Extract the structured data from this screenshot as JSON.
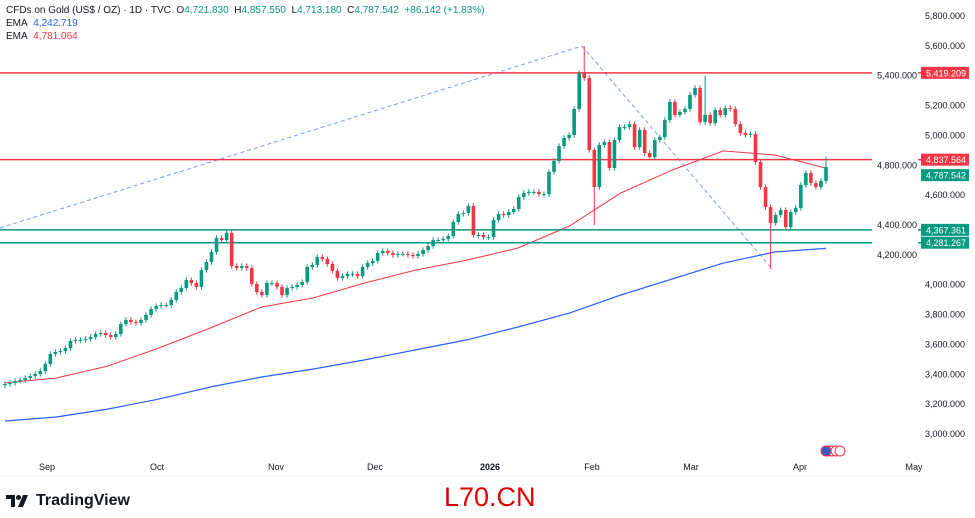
{
  "header": {
    "symbol": "CFDs on Gold (US$ / OZ) · 1D · TVC",
    "open_label": "O",
    "open": "4,721.830",
    "high_label": "H",
    "high": "4,857.550",
    "low_label": "L",
    "low": "4,713.180",
    "close_label": "C",
    "close": "4,787.542",
    "change": "+86.142 (+1.83%)",
    "ema1_label": "EMA",
    "ema1_value": "4,242.719",
    "ema2_label": "EMA",
    "ema2_value": "4,781.064"
  },
  "branding": {
    "logo_text": "TradingView",
    "watermark": "L70.CN"
  },
  "colors": {
    "up": "#089981",
    "down": "#f23645",
    "ema_slow": "#2962ff",
    "ema_fast": "#f23645",
    "support": "#089981",
    "resistance": "#f23645"
  },
  "chart_data": {
    "type": "candlestick",
    "title": "CFDs on Gold (US$ / OZ) · 1D · TVC",
    "x_tick_labels": [
      "Sep",
      "Oct",
      "Nov",
      "Dec",
      "2026",
      "Feb",
      "Mar",
      "Apr",
      "May"
    ],
    "y_tick_labels": [
      "3,000.000",
      "3,200.000",
      "3,400.000",
      "3,600.000",
      "3,800.000",
      "4,000.000",
      "4,200.000",
      "4,400.000",
      "4,600.000",
      "4,800.000",
      "5,000.000",
      "5,200.000",
      "5,400.000",
      "5,600.000",
      "5,800.000"
    ],
    "ylim": [
      2900,
      5900
    ],
    "grid": false,
    "closes": [
      3335,
      3342,
      3355,
      3362,
      3375,
      3388,
      3402,
      3422,
      3469,
      3536,
      3549,
      3556,
      3576,
      3623,
      3630,
      3630,
      3636,
      3650,
      3670,
      3676,
      3663,
      3650,
      3670,
      3737,
      3764,
      3750,
      3743,
      3764,
      3797,
      3837,
      3857,
      3864,
      3864,
      3898,
      3951,
      3978,
      4031,
      4011,
      3985,
      4098,
      4152,
      4219,
      4313,
      4299,
      4346,
      4125,
      4112,
      4125,
      4112,
      4005,
      3951,
      3931,
      4011,
      4011,
      3985,
      3931,
      3978,
      3985,
      3998,
      4018,
      4119,
      4132,
      4186,
      4172,
      4139,
      4092,
      4045,
      4058,
      4072,
      4072,
      4058,
      4119,
      4145,
      4159,
      4212,
      4226,
      4212,
      4199,
      4206,
      4206,
      4199,
      4192,
      4206,
      4232,
      4259,
      4299,
      4299,
      4306,
      4326,
      4420,
      4474,
      4480,
      4527,
      4333,
      4333,
      4319,
      4319,
      4433,
      4474,
      4467,
      4487,
      4507,
      4587,
      4614,
      4621,
      4621,
      4607,
      4607,
      4755,
      4829,
      4929,
      4983,
      5003,
      5177,
      5418,
      5384,
      4902,
      4654,
      4936,
      4956,
      4782,
      4969,
      5056,
      5056,
      5076,
      4922,
      5036,
      4882,
      4855,
      4969,
      4989,
      5103,
      5224,
      5137,
      5157,
      5177,
      5271,
      5318,
      5090,
      5137,
      5083,
      5170,
      5137,
      5183,
      5177,
      5076,
      5016,
      5003,
      5009,
      4822,
      4654,
      4520,
      4413,
      4467,
      4500,
      4386,
      4487,
      4514,
      4668,
      4748,
      4681,
      4654,
      4695,
      4787.542
    ],
    "notable_highs": {
      "115": 5599,
      "139": 5400,
      "163": 4857.55
    },
    "notable_lows": {
      "117": 4400,
      "152": 4105
    },
    "ema_fast": {
      "label": "EMA",
      "last": 4781.064,
      "samples": [
        3342,
        3375,
        3455,
        3576,
        3710,
        3851,
        3911,
        4011,
        4098,
        4165,
        4246,
        4393,
        4614,
        4768,
        4896,
        4869,
        4781
      ]
    },
    "ema_slow": {
      "label": "EMA",
      "last": 4242.719,
      "samples": [
        3087,
        3114,
        3167,
        3234,
        3315,
        3382,
        3435,
        3496,
        3563,
        3630,
        3717,
        3810,
        3931,
        4038,
        4145,
        4219,
        4243
      ]
    },
    "horizontal_levels": [
      {
        "value": 5419.209,
        "label": "5,419.209",
        "color": "#f23645"
      },
      {
        "value": 4837.564,
        "label": "4,837.564",
        "color": "#f23645"
      },
      {
        "value": 4367.361,
        "label": "4,367.361",
        "color": "#089981"
      },
      {
        "value": 4281.267,
        "label": "4,281.267",
        "color": "#089981"
      }
    ],
    "last_price": {
      "value": 4787.542,
      "label": "4,787.542",
      "color": "#089981"
    },
    "trend_lines": [
      {
        "from": 4380,
        "to": 5599,
        "style": "dashed"
      },
      {
        "from": 5599,
        "to": 4098,
        "style": "dashed"
      }
    ]
  }
}
